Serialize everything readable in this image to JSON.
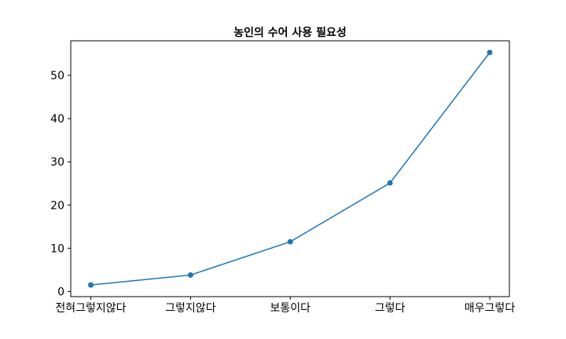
{
  "chart_data": {
    "type": "line",
    "title": "농인의 수어 사용 필요성",
    "xlabel": "",
    "ylabel": "",
    "categories": [
      "전혀그렇지않다",
      "그렇지않다",
      "보통이다",
      "그렇다",
      "매우그렇다"
    ],
    "series": [
      {
        "values": [
          1.5,
          3.8,
          11.5,
          25.1,
          55.3
        ]
      }
    ],
    "ylim": [
      -1.2,
      58.0
    ],
    "yticks": [
      0,
      10,
      20,
      30,
      40,
      50
    ],
    "grid": false,
    "colors": {
      "line": "#1f77b4",
      "marker": "#1f77b4"
    }
  }
}
